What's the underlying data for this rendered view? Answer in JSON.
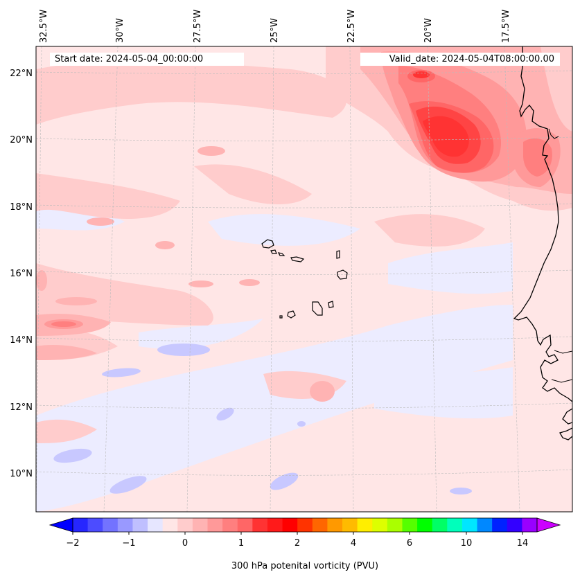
{
  "map": {
    "start_date": "Start date: 2024-05-04_00:00:00",
    "valid_date": "Valid_date: 2024-05-04T08:00:00.00",
    "lon_labels": [
      "32.5°W",
      "30°W",
      "27.5°W",
      "25°W",
      "22.5°W",
      "20°W",
      "17.5°W"
    ],
    "lat_labels": [
      "22°N",
      "20°N",
      "18°N",
      "16°N",
      "14°N",
      "12°N",
      "10°N"
    ]
  },
  "colorbar": {
    "title": "300 hPa potenital vorticity (PVU)",
    "ticks": [
      "−2",
      "−1",
      "0",
      "1",
      "2",
      "4",
      "6",
      "10",
      "14"
    ],
    "colors": [
      "#0000ff",
      "#2626ff",
      "#4c4cff",
      "#7373ff",
      "#9999ff",
      "#bfbfff",
      "#e6e6ff",
      "#ffe6e6",
      "#ffcccc",
      "#ffb3b3",
      "#ff9999",
      "#ff7f7f",
      "#ff6666",
      "#ff3333",
      "#ff1a1a",
      "#ff0000",
      "#ff3300",
      "#ff6600",
      "#ff9900",
      "#ffbb00",
      "#ffee00",
      "#ddff00",
      "#aaff00",
      "#55ff00",
      "#00ff00",
      "#00ff66",
      "#00ffbb",
      "#00e6ff",
      "#0088ff",
      "#0022ff",
      "#3300ff",
      "#9900ff",
      "#cc00ff"
    ]
  },
  "colors": {
    "background": "#ffe6e6",
    "coast": "#000000",
    "grid": "#bbbbbb"
  }
}
